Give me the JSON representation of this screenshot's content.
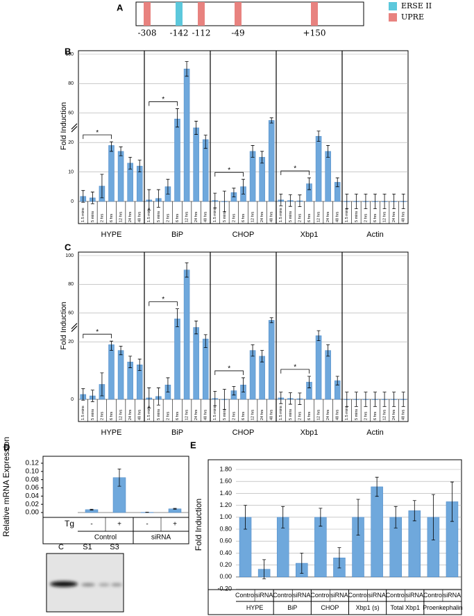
{
  "panel_labels": [
    "A",
    "B",
    "C",
    "D",
    "E"
  ],
  "promoter": {
    "sites": [
      {
        "label": "-308",
        "color": "#e8827f"
      },
      {
        "label": "-142",
        "color": "#5cc8dc"
      },
      {
        "label": "-112",
        "color": "#e8827f"
      },
      {
        "label": "-49",
        "color": "#e8827f"
      },
      {
        "label": "+150",
        "color": "#e8827f"
      }
    ],
    "legend": [
      {
        "name": "ERSE II",
        "color": "#5cc8dc"
      },
      {
        "name": "UPRE",
        "color": "#e8827f"
      }
    ]
  },
  "chart_data": [
    {
      "type": "bar",
      "ylabel": "Fold Induction",
      "color": "#6fa8dc",
      "categories": [
        "1.5 mins",
        "5 mins",
        "2 hrs",
        "6 hrs",
        "12 hrs",
        "24 hrs",
        "48 hrs"
      ],
      "series": [
        {
          "name": "HYPE",
          "values": [
            1.7,
            1.2,
            5.2,
            19,
            17,
            13,
            12
          ],
          "errors": [
            2,
            2,
            4,
            2,
            1.5,
            2,
            2
          ]
        },
        {
          "name": "BiP",
          "values": [
            0.5,
            1,
            5,
            52,
            90,
            40,
            24
          ],
          "errors": [
            3.5,
            3,
            2.5,
            11,
            5,
            9,
            6
          ]
        },
        {
          "name": "CHOP",
          "values": [
            0.3,
            0,
            3,
            5,
            17,
            15,
            50
          ],
          "errors": [
            2.5,
            3.5,
            1.5,
            2.5,
            2,
            2,
            3.5
          ]
        },
        {
          "name": "Xbp1",
          "values": [
            0.5,
            0.3,
            0.2,
            6,
            28.5,
            17,
            6.5
          ],
          "errors": [
            2,
            2,
            2,
            2,
            7,
            2,
            1.5
          ]
        },
        {
          "name": "Actin",
          "values": [
            0,
            0,
            0,
            0,
            0,
            0,
            0
          ],
          "errors": [
            2.5,
            2.5,
            2.5,
            2.5,
            2.5,
            2.5,
            2.5
          ]
        }
      ],
      "significance": [
        "*",
        "*",
        "*",
        "*",
        null
      ],
      "ylim": [
        0,
        100
      ],
      "ybreak": [
        20,
        60
      ],
      "yticks": [
        0,
        10,
        20,
        60,
        80,
        100
      ],
      "grid": true
    },
    {
      "type": "bar",
      "ylabel": "Fold Induction",
      "color": "#6fa8dc",
      "categories": [
        "1.5 mins",
        "5 mins",
        "2 hrs",
        "6 hrs",
        "12 hrs",
        "24 hrs",
        "48 hrs"
      ],
      "series": [
        {
          "name": "HYPE",
          "values": [
            1.7,
            1.2,
            5.2,
            19,
            17,
            13,
            12
          ],
          "errors": [
            2,
            2,
            4,
            2,
            1.5,
            2,
            2
          ]
        },
        {
          "name": "BiP",
          "values": [
            0.5,
            1,
            5,
            52,
            90,
            40,
            24
          ],
          "errors": [
            3.5,
            3,
            2.5,
            11,
            5,
            9,
            6
          ]
        },
        {
          "name": "CHOP",
          "values": [
            0.3,
            0,
            3,
            5,
            17,
            15,
            50
          ],
          "errors": [
            2.5,
            3.5,
            1.5,
            2.5,
            2,
            2,
            3.5
          ]
        },
        {
          "name": "Xbp1",
          "values": [
            0.5,
            0.3,
            0.2,
            6,
            28.5,
            17,
            6.5
          ],
          "errors": [
            2,
            2,
            2,
            2,
            7,
            2,
            1.5
          ]
        },
        {
          "name": "Actin",
          "values": [
            0,
            0,
            0,
            0,
            0,
            0,
            0
          ],
          "errors": [
            2.5,
            2.5,
            2.5,
            2.5,
            2.5,
            2.5,
            2.5
          ]
        }
      ],
      "significance": [
        "*",
        "*",
        "*",
        "*",
        null
      ],
      "ylim": [
        0,
        100
      ],
      "ybreak": [
        20,
        60
      ],
      "yticks": [
        0,
        20,
        60,
        80,
        100
      ],
      "grid": true
    },
    {
      "type": "bar",
      "ylabel": "Relative mRNA  Expression",
      "xlabel": "Tg",
      "color": "#6fa8dc",
      "categories": [
        "-",
        "+",
        "-",
        "+"
      ],
      "groups": [
        "Control",
        "siRNA"
      ],
      "values": [
        0.007,
        0.085,
        0.0005,
        0.009
      ],
      "errors": [
        0.001,
        0.021,
        0.0003,
        0.001
      ],
      "ylim": [
        0,
        0.12
      ],
      "yticks": [
        {
          "value": 0,
          "label": "0.00"
        },
        {
          "value": 0.02,
          "label": "0.02"
        },
        {
          "value": 0.04,
          "label": "0.04"
        },
        {
          "value": 0.06,
          "label": "0.06"
        },
        {
          "value": 0.08,
          "label": "0.08"
        },
        {
          "value": 0.1,
          "label": "0.10"
        },
        {
          "value": 0.12,
          "label": "0.12"
        }
      ],
      "grid": false
    },
    {
      "type": "bar",
      "ylabel": "Fold Induction",
      "color": "#6fa8dc",
      "categories": [
        "Control",
        "siRNA",
        "Control",
        "siRNA",
        "Control",
        "siRNA",
        "Control",
        "siRNA",
        "Control",
        "siRNA",
        "Control",
        "siRNA"
      ],
      "groups": [
        "HYPE",
        "BiP",
        "CHOP",
        "Xbp1 (s)",
        "Total Xbp1",
        "Proenkephalin"
      ],
      "values": [
        1.0,
        0.13,
        1.0,
        0.23,
        1.0,
        0.32,
        1.0,
        1.51,
        1.0,
        1.11,
        1.0,
        1.26
      ],
      "errors": [
        0.2,
        0.16,
        0.18,
        0.17,
        0.15,
        0.17,
        0.3,
        0.16,
        0.18,
        0.17,
        0.38,
        0.33
      ],
      "ylim": [
        -0.2,
        1.8
      ],
      "yticks": [
        {
          "value": -0.2,
          "label": "-0.20"
        },
        {
          "value": 0,
          "label": "0.00"
        },
        {
          "value": 0.2,
          "label": "0.20"
        },
        {
          "value": 0.4,
          "label": "0.40"
        },
        {
          "value": 0.6,
          "label": "0.60"
        },
        {
          "value": 0.8,
          "label": "0.80"
        },
        {
          "value": 1.0,
          "label": "1.00"
        },
        {
          "value": 1.2,
          "label": "1.20"
        },
        {
          "value": 1.4,
          "label": "1.40"
        },
        {
          "value": 1.6,
          "label": "1.60"
        },
        {
          "value": 1.8,
          "label": "1.80"
        }
      ],
      "grid": true
    }
  ],
  "gel": {
    "lanes": [
      "C",
      "S1",
      "S3"
    ]
  }
}
